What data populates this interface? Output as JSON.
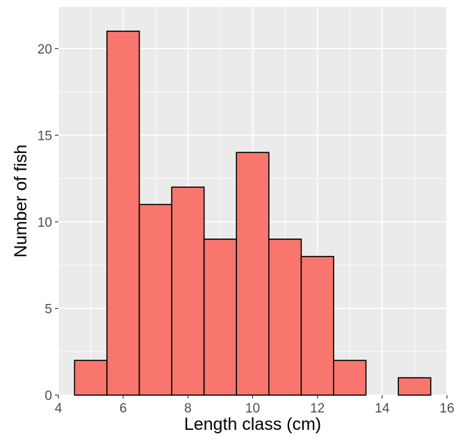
{
  "chart_data": {
    "type": "bar",
    "title": "",
    "xlabel": "Length class (cm)",
    "ylabel": "Number of fish",
    "bin_width": 1,
    "bins": [
      {
        "center": 5,
        "count": 2
      },
      {
        "center": 6,
        "count": 21
      },
      {
        "center": 7,
        "count": 11
      },
      {
        "center": 8,
        "count": 12
      },
      {
        "center": 9,
        "count": 9
      },
      {
        "center": 10,
        "count": 14
      },
      {
        "center": 11,
        "count": 9
      },
      {
        "center": 12,
        "count": 8
      },
      {
        "center": 13,
        "count": 2
      },
      {
        "center": 14,
        "count": 0
      },
      {
        "center": 15,
        "count": 1
      }
    ],
    "xlim": [
      4,
      16
    ],
    "ylim": [
      0,
      22.4
    ],
    "x_ticks": [
      {
        "value": 4,
        "label": "4"
      },
      {
        "value": 6,
        "label": "6"
      },
      {
        "value": 8,
        "label": "8"
      },
      {
        "value": 10,
        "label": "10"
      },
      {
        "value": 12,
        "label": "12"
      },
      {
        "value": 14,
        "label": "14"
      },
      {
        "value": 16,
        "label": "16"
      }
    ],
    "y_ticks": [
      {
        "value": 0,
        "label": "0"
      },
      {
        "value": 5,
        "label": "5"
      },
      {
        "value": 10,
        "label": "10"
      },
      {
        "value": 15,
        "label": "15"
      },
      {
        "value": 20,
        "label": "20"
      }
    ],
    "grid": true,
    "colors": {
      "bar_fill": "#F8766D",
      "bar_stroke": "#000000",
      "panel_bg": "#EBEBEB",
      "grid": "#FFFFFF"
    }
  }
}
